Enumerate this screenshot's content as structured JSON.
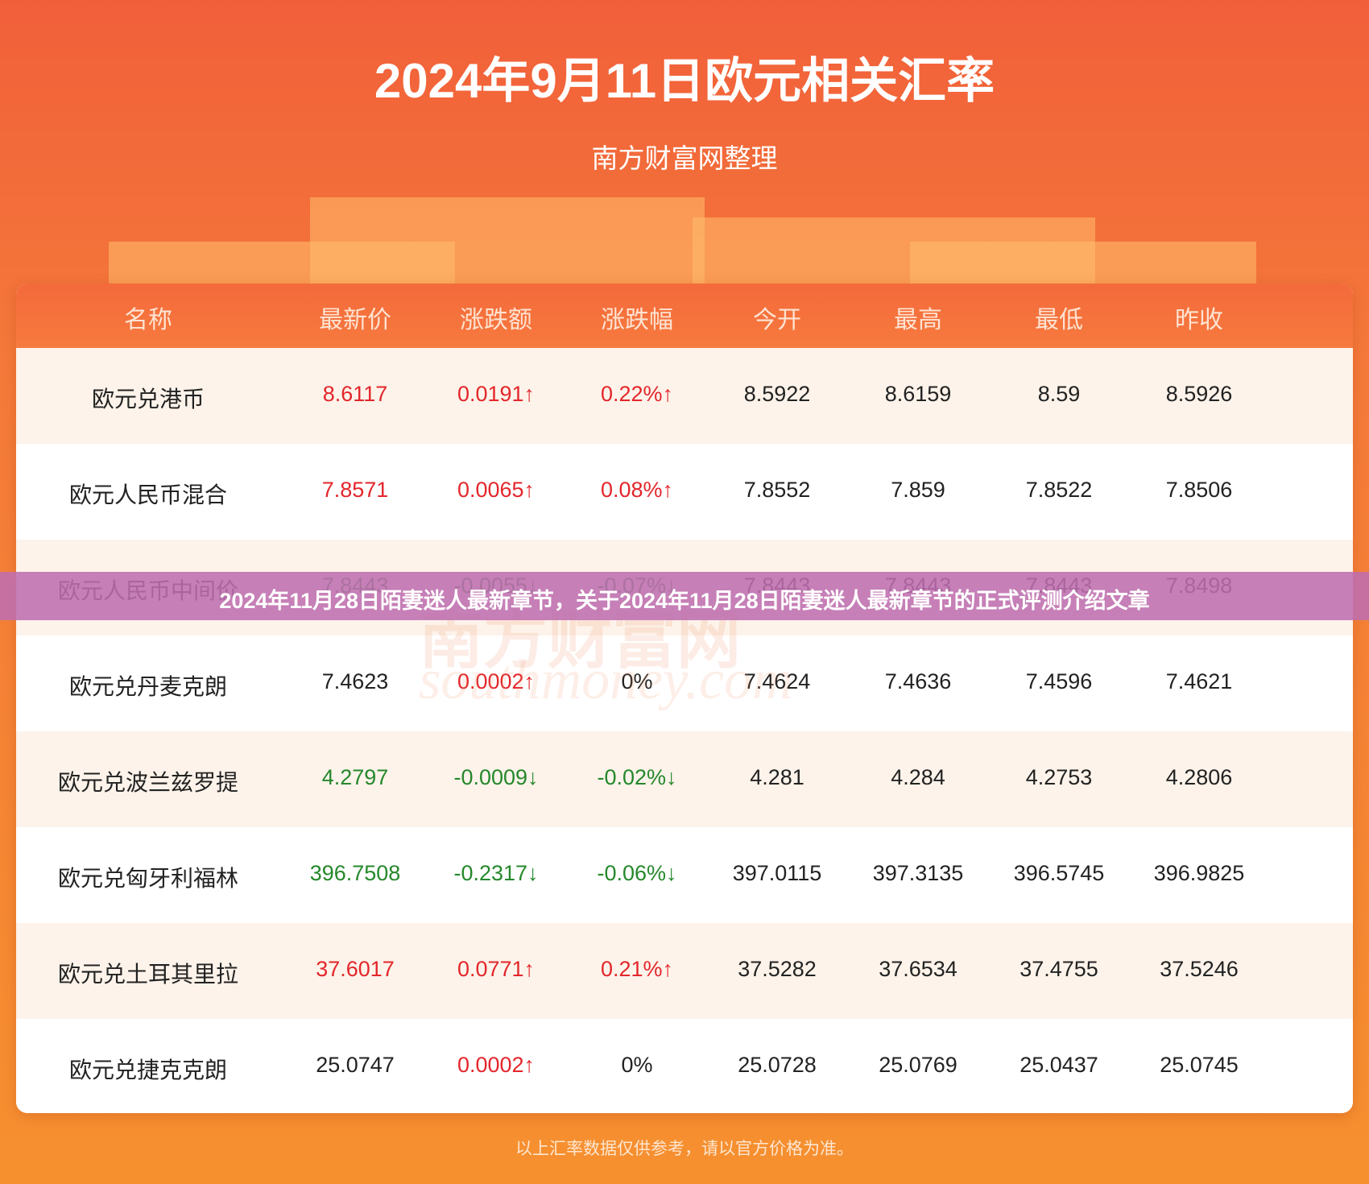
{
  "header": {
    "title": "2024年9月11日欧元相关汇率",
    "subtitle": "南方财富网整理"
  },
  "banner": "2024年11月28日陌妻迷人最新章节，关于2024年11月28日陌妻迷人最新章节的正式评测介绍文章",
  "watermark": {
    "cn": "南方财富网",
    "en": "southmoney.com"
  },
  "table": {
    "columns": [
      "名称",
      "最新价",
      "涨跌额",
      "涨跌幅",
      "今开",
      "最高",
      "最低",
      "昨收"
    ],
    "rows": [
      {
        "name": "欧元兑港币",
        "cells": [
          "8.6117",
          "0.0191↑",
          "0.22%↑",
          "8.5922",
          "8.6159",
          "8.59",
          "8.5926"
        ],
        "price_trend": "up",
        "change_trend": "up"
      },
      {
        "name": "欧元人民币混合",
        "cells": [
          "7.8571",
          "0.0065↑",
          "0.08%↑",
          "7.8552",
          "7.859",
          "7.8522",
          "7.8506"
        ],
        "price_trend": "up",
        "change_trend": "up"
      },
      {
        "name": "欧元人民币中间价",
        "cells": [
          "7.8443",
          "-0.0055↓",
          "-0.07%↓",
          "7.8443",
          "7.8443",
          "7.8443",
          "7.8498"
        ],
        "price_trend": "down",
        "change_trend": "down"
      },
      {
        "name": "欧元兑丹麦克朗",
        "cells": [
          "7.4623",
          "0.0002↑",
          "0%",
          "7.4624",
          "7.4636",
          "7.4596",
          "7.4621"
        ],
        "price_trend": "flat",
        "change_trend": "up"
      },
      {
        "name": "欧元兑波兰兹罗提",
        "cells": [
          "4.2797",
          "-0.0009↓",
          "-0.02%↓",
          "4.281",
          "4.284",
          "4.2753",
          "4.2806"
        ],
        "price_trend": "down",
        "change_trend": "down"
      },
      {
        "name": "欧元兑匈牙利福林",
        "cells": [
          "396.7508",
          "-0.2317↓",
          "-0.06%↓",
          "397.0115",
          "397.3135",
          "396.5745",
          "396.9825"
        ],
        "price_trend": "down",
        "change_trend": "down"
      },
      {
        "name": "欧元兑土耳其里拉",
        "cells": [
          "37.6017",
          "0.0771↑",
          "0.21%↑",
          "37.5282",
          "37.6534",
          "37.4755",
          "37.5246"
        ],
        "price_trend": "up",
        "change_trend": "up"
      },
      {
        "name": "欧元兑捷克克朗",
        "cells": [
          "25.0747",
          "0.0002↑",
          "0%",
          "25.0728",
          "25.0769",
          "25.0437",
          "25.0745"
        ],
        "price_trend": "flat",
        "change_trend": "up"
      }
    ]
  },
  "footer": "以上汇率数据仅供参考，请以官方价格为准。"
}
